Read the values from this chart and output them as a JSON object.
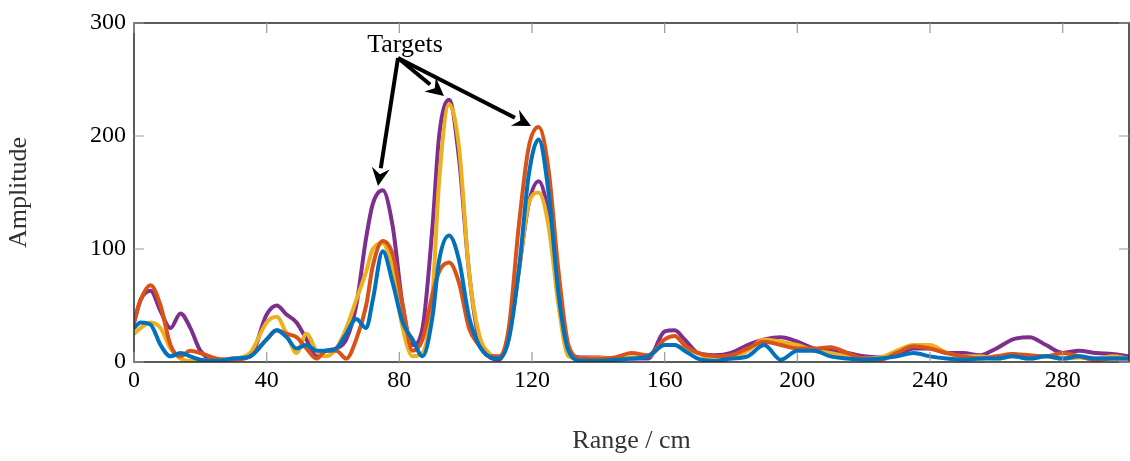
{
  "chart_data": {
    "type": "line",
    "xlabel": "Range / cm",
    "ylabel": "Amplitude",
    "x": [
      0,
      2,
      5,
      8,
      11,
      14,
      17,
      20,
      25,
      30,
      35,
      40,
      43,
      46,
      49,
      52,
      55,
      58,
      61,
      64,
      67,
      70,
      72,
      75,
      78,
      81,
      84,
      87,
      90,
      92,
      95,
      98,
      101,
      104,
      107,
      110,
      113,
      116,
      119,
      122,
      125,
      128,
      131,
      135,
      140,
      145,
      150,
      155,
      160,
      163,
      166,
      170,
      175,
      180,
      185,
      190,
      195,
      200,
      205,
      210,
      215,
      220,
      225,
      230,
      235,
      240,
      245,
      250,
      255,
      260,
      265,
      270,
      275,
      280,
      285,
      290,
      295,
      300
    ],
    "series": [
      {
        "color": "#0072bd",
        "values": [
          30,
          35,
          33,
          15,
          5,
          8,
          5,
          2,
          1,
          3,
          5,
          20,
          28,
          22,
          12,
          15,
          10,
          10,
          12,
          25,
          38,
          30,
          55,
          98,
          70,
          35,
          20,
          5,
          40,
          90,
          112,
          90,
          40,
          15,
          5,
          3,
          20,
          80,
          165,
          197,
          150,
          60,
          10,
          1,
          1,
          2,
          3,
          5,
          15,
          15,
          10,
          3,
          1,
          3,
          5,
          15,
          2,
          10,
          10,
          5,
          3,
          2,
          3,
          5,
          8,
          5,
          3,
          2,
          3,
          3,
          5,
          3,
          5,
          3,
          5,
          3,
          3,
          3
        ]
      },
      {
        "color": "#d95319",
        "values": [
          35,
          55,
          68,
          50,
          15,
          5,
          10,
          8,
          3,
          2,
          5,
          20,
          28,
          25,
          22,
          12,
          3,
          10,
          10,
          3,
          20,
          50,
          85,
          107,
          95,
          50,
          10,
          20,
          60,
          80,
          88,
          70,
          30,
          15,
          5,
          5,
          30,
          120,
          190,
          208,
          170,
          80,
          15,
          3,
          3,
          4,
          8,
          6,
          20,
          23,
          15,
          8,
          5,
          6,
          12,
          18,
          15,
          12,
          12,
          13,
          8,
          3,
          2,
          8,
          14,
          12,
          8,
          5,
          3,
          5,
          7,
          6,
          5,
          8,
          5,
          2,
          3,
          3
        ]
      },
      {
        "color": "#edb120",
        "values": [
          25,
          30,
          35,
          30,
          12,
          3,
          1,
          1,
          2,
          3,
          8,
          35,
          40,
          25,
          8,
          25,
          10,
          5,
          12,
          30,
          55,
          80,
          100,
          105,
          80,
          30,
          5,
          8,
          60,
          160,
          228,
          190,
          80,
          25,
          8,
          4,
          20,
          80,
          140,
          150,
          120,
          50,
          5,
          3,
          4,
          3,
          4,
          5,
          15,
          15,
          12,
          8,
          1,
          3,
          10,
          20,
          18,
          15,
          10,
          8,
          5,
          3,
          4,
          10,
          15,
          15,
          8,
          5,
          5,
          3,
          5,
          3,
          5,
          3,
          4,
          3,
          5,
          3
        ]
      },
      {
        "color": "#7e2f8e",
        "values": [
          35,
          55,
          63,
          45,
          30,
          43,
          30,
          10,
          1,
          3,
          5,
          42,
          50,
          42,
          35,
          20,
          5,
          10,
          12,
          20,
          50,
          110,
          140,
          152,
          120,
          50,
          15,
          30,
          120,
          200,
          232,
          180,
          80,
          20,
          5,
          2,
          25,
          80,
          140,
          160,
          130,
          60,
          10,
          4,
          4,
          3,
          3,
          3,
          27,
          28,
          20,
          8,
          6,
          8,
          15,
          20,
          22,
          18,
          12,
          10,
          8,
          5,
          4,
          6,
          12,
          12,
          8,
          8,
          6,
          12,
          20,
          22,
          15,
          8,
          10,
          8,
          7,
          5
        ]
      }
    ],
    "xlim": [
      0,
      300
    ],
    "xticks": [
      0,
      40,
      80,
      120,
      160,
      200,
      240,
      280
    ],
    "ylim": [
      0,
      300
    ],
    "yticks": [
      0,
      100,
      200,
      300
    ],
    "annotations": [
      "Targets"
    ],
    "grid": false,
    "legend": false,
    "marker": "none",
    "line_style": "solid"
  }
}
